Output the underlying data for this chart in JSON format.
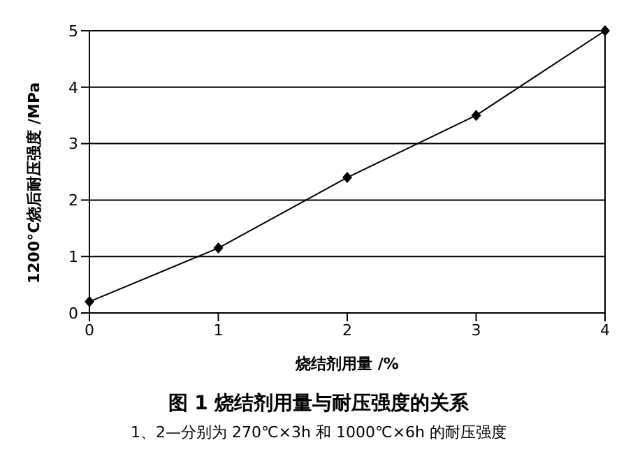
{
  "chart_data": {
    "type": "line",
    "title": "图 1 烧结剂用量与耐压强度的关系",
    "xlabel": "烧结剂用量 /%",
    "ylabel": "1200°C烧后耐压强度 /MPa",
    "annotations": [
      "1、2—分别为 270℃×3h 和 1000℃×6h 的耐压强度"
    ],
    "x": [
      0,
      1,
      2,
      3,
      4
    ],
    "series": [
      {
        "color": "#000000",
        "values": [
          0.2,
          1.15,
          2.4,
          3.5,
          5.0
        ]
      }
    ],
    "xlim": [
      0,
      4
    ],
    "xticks": [
      0,
      1,
      2,
      3,
      4
    ],
    "ylim": [
      0,
      5
    ],
    "yticks": [
      0,
      1,
      2,
      3,
      4,
      5
    ],
    "grid": "y",
    "legend": false,
    "marker": "diamond",
    "line_style": "solid"
  }
}
